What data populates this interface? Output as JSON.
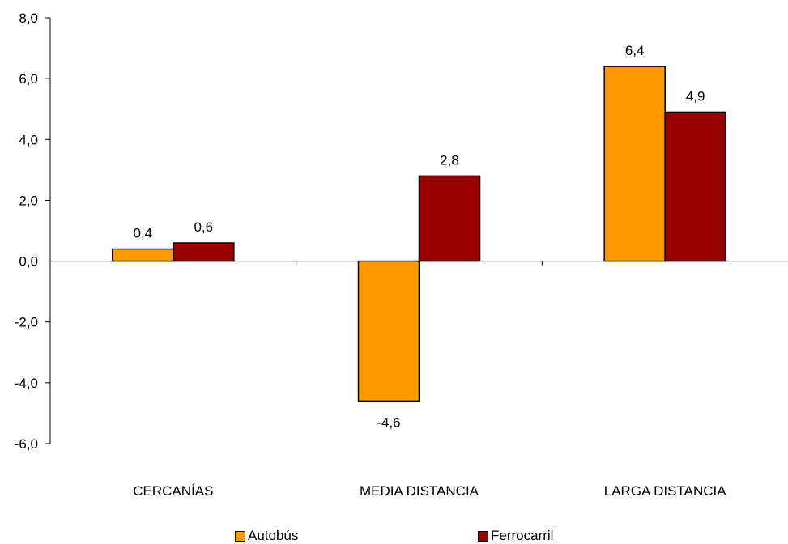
{
  "chart_data": {
    "type": "bar",
    "title": "",
    "xlabel": "",
    "ylabel": "",
    "categories": [
      "CERCANÍAS",
      "MEDIA DISTANCIA",
      "LARGA DISTANCIA"
    ],
    "series": [
      {
        "name": "Autobús",
        "values": [
          0.4,
          -4.6,
          6.4
        ],
        "labels": [
          "0,4",
          "-4,6",
          "6,4"
        ],
        "color": "#FF9900"
      },
      {
        "name": "Ferrocarril",
        "values": [
          0.6,
          2.8,
          4.9
        ],
        "labels": [
          "0,6",
          "2,8",
          "4,9"
        ],
        "color": "#990000"
      }
    ],
    "ylim": [
      -6,
      8
    ],
    "yticks": [
      8,
      6,
      4,
      2,
      0,
      -2,
      -4,
      -6
    ],
    "ytick_labels": [
      "8,0",
      "6,0",
      "4,0",
      "2,0",
      "0,0",
      "-2,0",
      "-4,0",
      "-6,0"
    ],
    "grid": false,
    "legend_position": "bottom"
  }
}
